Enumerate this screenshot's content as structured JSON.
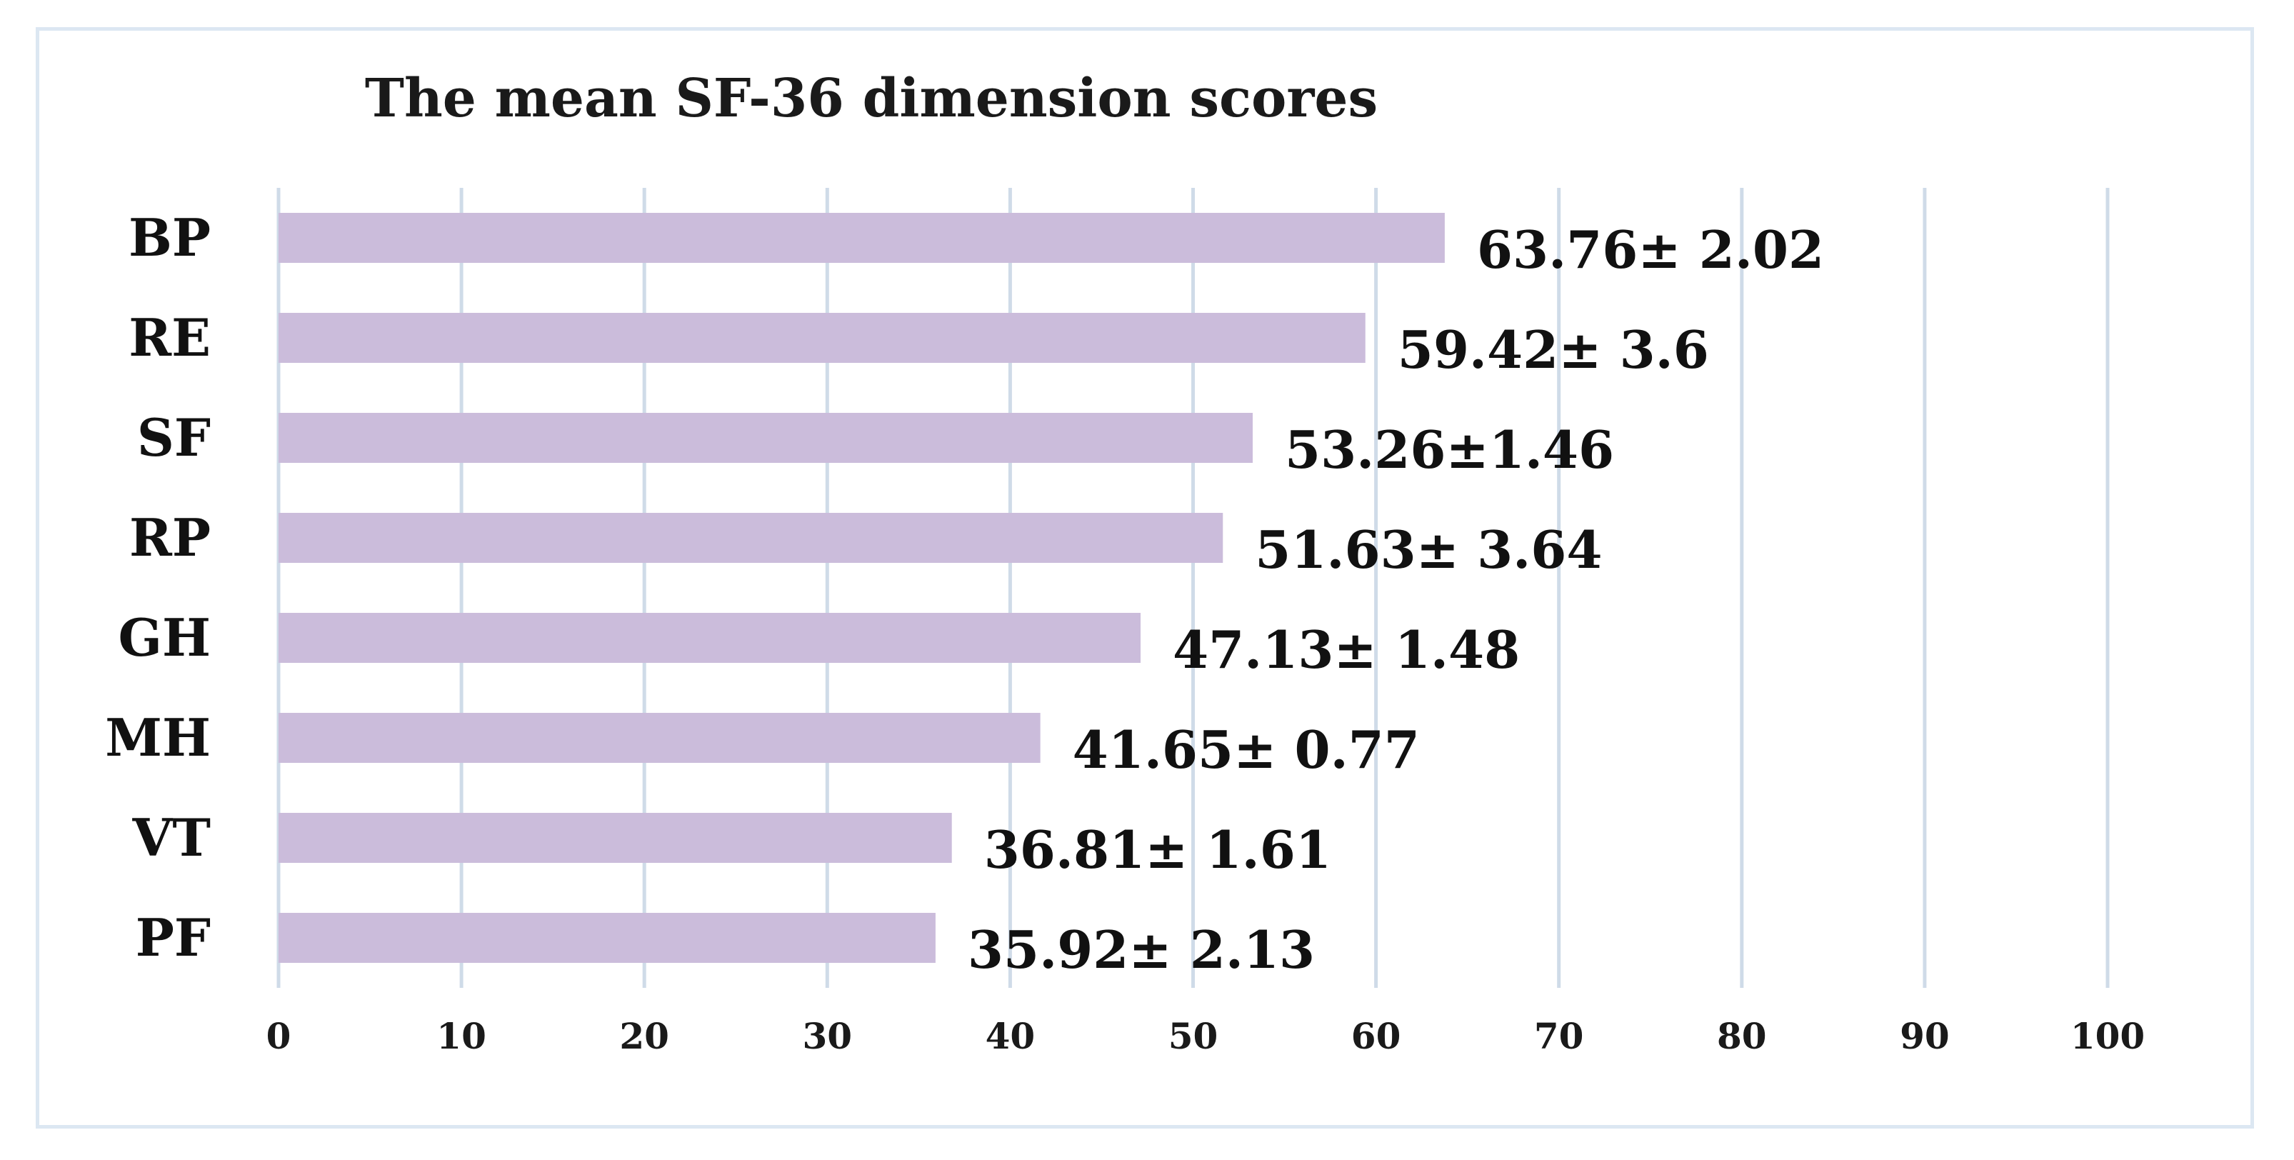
{
  "chart_data": {
    "type": "bar",
    "orientation": "horizontal",
    "title": "The mean SF-36 dimension scores",
    "categories": [
      "BP",
      "RE",
      "SF",
      "RP",
      "GH",
      "MH",
      "VT",
      "PF"
    ],
    "values": [
      63.76,
      59.42,
      53.26,
      51.63,
      47.13,
      41.65,
      36.81,
      35.92
    ],
    "data_labels": [
      "63.76± 2.02",
      "59.42± 3.6",
      "53.26±1.46",
      "51.63± 3.64",
      "47.13± 1.48",
      "41.65± 0.77",
      "36.81± 1.61",
      "35.92± 2.13"
    ],
    "xlim": [
      0,
      100
    ],
    "xticks": [
      "0",
      "10",
      "20",
      "30",
      "40",
      "50",
      "60",
      "70",
      "80",
      "90",
      "100"
    ],
    "grid": "vertical",
    "legend": "none",
    "colors": {
      "bar": "#cbbcdb",
      "grid": "#cfdbe8",
      "frame": "#dce7f2",
      "text": "#111111"
    }
  }
}
